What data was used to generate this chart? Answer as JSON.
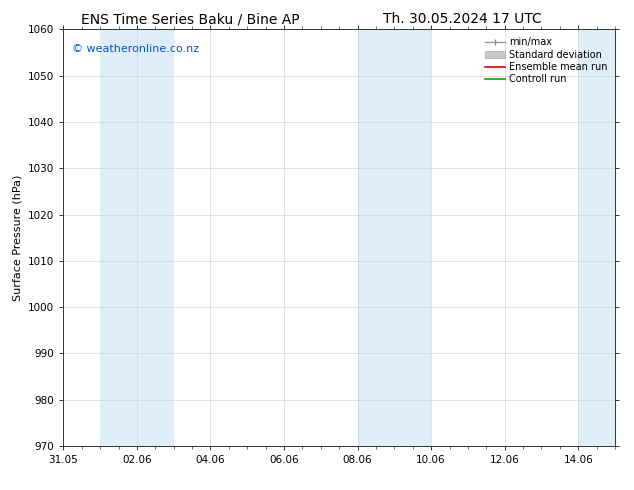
{
  "title_left": "ENS Time Series Baku / Bine AP",
  "title_right": "Th. 30.05.2024 17 UTC",
  "ylabel": "Surface Pressure (hPa)",
  "ylim": [
    970,
    1060
  ],
  "yticks": [
    970,
    980,
    990,
    1000,
    1010,
    1020,
    1030,
    1040,
    1050,
    1060
  ],
  "xlim": [
    0,
    15
  ],
  "xtick_labels": [
    "31.05",
    "02.06",
    "04.06",
    "06.06",
    "08.06",
    "10.06",
    "12.06",
    "14.06"
  ],
  "xtick_positions": [
    0,
    2,
    4,
    6,
    8,
    10,
    12,
    14
  ],
  "shaded_bands": [
    {
      "xstart": 1.0,
      "xend": 3.0,
      "color": "#ddeef8"
    },
    {
      "xstart": 8.0,
      "xend": 9.0,
      "color": "#ddeef8"
    },
    {
      "xstart": 9.0,
      "xend": 10.0,
      "color": "#ddeef8"
    },
    {
      "xstart": 14.0,
      "xend": 15.0,
      "color": "#ddeef8"
    }
  ],
  "watermark": "© weatheronline.co.nz",
  "watermark_color": "#0055cc",
  "legend_items": [
    {
      "label": "min/max",
      "color": "#aaaaaa",
      "type": "errorbar"
    },
    {
      "label": "Standard deviation",
      "color": "#cccccc",
      "type": "bar"
    },
    {
      "label": "Ensemble mean run",
      "color": "#dd0000",
      "type": "line"
    },
    {
      "label": "Controll run",
      "color": "#00aa00",
      "type": "line"
    }
  ],
  "background_color": "#ffffff",
  "plot_bg_color": "#ffffff",
  "tick_color": "#333333",
  "spine_color": "#333333",
  "title_fontsize": 10,
  "axis_label_fontsize": 8,
  "tick_fontsize": 7.5,
  "watermark_fontsize": 8
}
